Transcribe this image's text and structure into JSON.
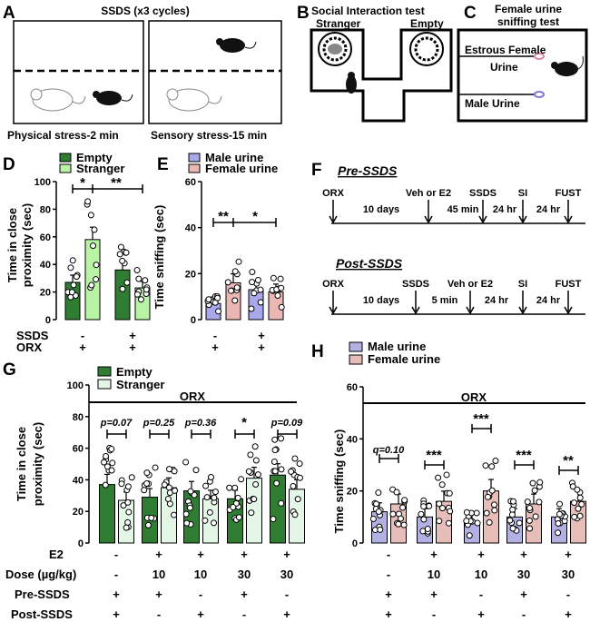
{
  "panel_a": {
    "letter": "A",
    "title": "SSDS (x3 cycles)",
    "captions": [
      "Physical stress-2 min",
      "Sensory stress-15 min"
    ]
  },
  "panel_b": {
    "letter": "B",
    "title": "Social Interaction test",
    "labels": [
      "Stranger",
      "Empty"
    ]
  },
  "panel_c": {
    "letter": "C",
    "title": "Female urine sniffing test",
    "title_lines": [
      "Female urine",
      "sniffing test"
    ],
    "labels": [
      "Estrous Female",
      "Urine",
      "Male Urine"
    ]
  },
  "panel_f": {
    "letter": "F",
    "pre_title": "Pre-SSDS",
    "post_title": "Post-SSDS",
    "pre_events": [
      "ORX",
      "Veh or E2",
      "SSDS",
      "SI",
      "FUST"
    ],
    "pre_intervals": [
      "10 days",
      "45 min",
      "24 hr",
      "24 hr"
    ],
    "post_events": [
      "ORX",
      "SSDS",
      "Veh or E2",
      "SI",
      "FUST"
    ],
    "post_intervals": [
      "10 days",
      "5 min",
      "24 hr",
      "24 hr"
    ]
  },
  "colors": {
    "dark_green": "#2e7d32",
    "light_green": "#b9f3a4",
    "pale_green": "#e4f7e6",
    "lavender": "#a9a8ea",
    "pink": "#ebb7b5",
    "lavender_light": "#b3b0e3",
    "pink_light": "#e7bdb9"
  },
  "chart_data": [
    {
      "panel": "D",
      "type": "bar",
      "ylabel": "Time in close proximity (sec)",
      "ylim": [
        0,
        100
      ],
      "yticks": [
        0,
        20,
        40,
        60,
        80,
        100
      ],
      "series": [
        {
          "name": "Empty",
          "color": "#2e7d32",
          "values": [
            27,
            36
          ]
        },
        {
          "name": "Stranger",
          "color": "#b9f3a4",
          "values": [
            58,
            23
          ]
        }
      ],
      "row_labels": [
        "SSDS",
        "ORX"
      ],
      "rows": [
        [
          "-",
          "+"
        ],
        [
          "+",
          "+"
        ]
      ],
      "significance": [
        {
          "label": "*",
          "between": "Empty vs Stranger (-)"
        },
        {
          "label": "**",
          "between": "Stranger (-) vs Stranger (+)"
        }
      ]
    },
    {
      "panel": "E",
      "type": "bar",
      "ylabel": "Time sniffing (sec)",
      "ylim": [
        0,
        60
      ],
      "yticks": [
        0,
        20,
        40,
        60
      ],
      "series": [
        {
          "name": "Male urine",
          "color": "#a9a8ea",
          "values": [
            7,
            13
          ]
        },
        {
          "name": "Female urine",
          "color": "#ebb7b5",
          "values": [
            16,
            12
          ]
        }
      ],
      "row_labels": [
        "SSDS",
        "ORX"
      ],
      "rows": [
        [
          "-",
          "+"
        ],
        [
          "+",
          "+"
        ]
      ],
      "significance": [
        {
          "label": "**",
          "between": "Male vs Female (-)"
        },
        {
          "label": "*",
          "between": "Female (-) vs Female (+)"
        }
      ]
    },
    {
      "panel": "G",
      "type": "bar",
      "ylabel": "Time in close proximity (sec)",
      "ylim": [
        0,
        100
      ],
      "yticks": [
        0,
        20,
        40,
        60,
        80,
        100
      ],
      "group_label": "ORX",
      "series": [
        {
          "name": "Empty",
          "color": "#2e7d32",
          "values": [
            37,
            29,
            33,
            28,
            43
          ]
        },
        {
          "name": "Stranger",
          "color": "#e4f7e6",
          "values": [
            27,
            35,
            28,
            41,
            34
          ]
        }
      ],
      "annotations": [
        "p=0.07",
        "p=0.25",
        "p=0.36",
        "*",
        "p=0.09"
      ],
      "row_labels": [
        "E2",
        "Dose (µg/kg)",
        "Pre-SSDS",
        "Post-SSDS"
      ],
      "rows": [
        [
          "-",
          "+",
          "+",
          "+",
          "+"
        ],
        [
          "-",
          "10",
          "10",
          "30",
          "30"
        ],
        [
          "+",
          "+",
          "-",
          "+",
          "-"
        ],
        [
          "+",
          "-",
          "+",
          "-",
          "+"
        ]
      ]
    },
    {
      "panel": "H",
      "type": "bar",
      "ylabel": "Time sniffing (sec)",
      "ylim": [
        0,
        60
      ],
      "yticks": [
        0,
        20,
        40,
        60
      ],
      "group_label": "ORX",
      "series": [
        {
          "name": "Male urine",
          "color": "#b3b0e3",
          "values": [
            12,
            10,
            8,
            10,
            10
          ]
        },
        {
          "name": "Female urine",
          "color": "#e7bdb9",
          "values": [
            15,
            16,
            20,
            15,
            16
          ]
        }
      ],
      "annotations": [
        "q=0.10",
        "***",
        "***",
        "***",
        "**"
      ],
      "rows": [
        [
          "-",
          "+",
          "+",
          "+",
          "+"
        ],
        [
          "-",
          "10",
          "10",
          "30",
          "30"
        ],
        [
          "+",
          "+",
          "-",
          "+",
          "-"
        ],
        [
          "+",
          "-",
          "+",
          "-",
          "+"
        ]
      ]
    }
  ]
}
